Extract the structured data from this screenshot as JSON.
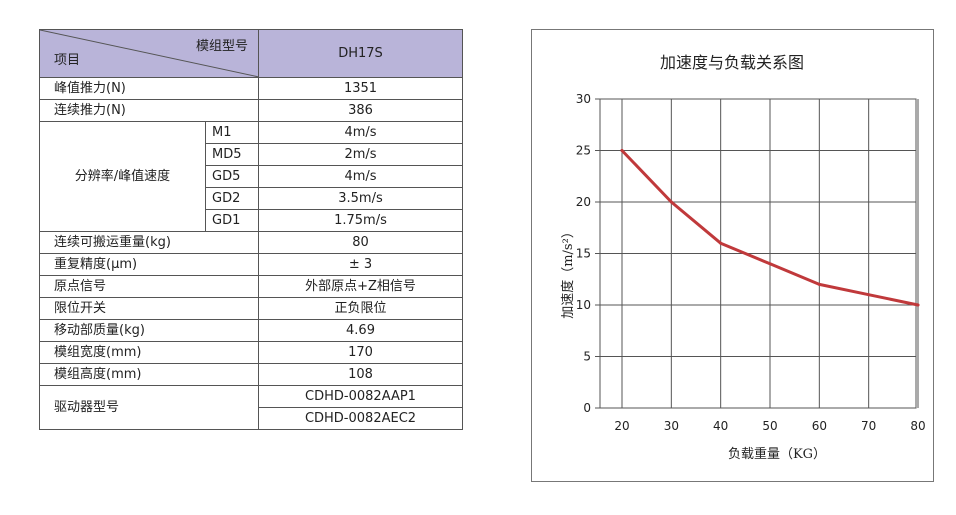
{
  "table": {
    "header": {
      "corner_top": "模组型号",
      "corner_bottom": "项目",
      "model": "DH17S"
    },
    "rows": {
      "peak_force": {
        "label": "峰值推力(N)",
        "value": "1351"
      },
      "cont_force": {
        "label": "连续推力(N)",
        "value": "386"
      },
      "resolution": {
        "label": "分辨率/峰值速度",
        "items": [
          {
            "sub": "M1",
            "value": "4m/s"
          },
          {
            "sub": "MD5",
            "value": "2m/s"
          },
          {
            "sub": "GD5",
            "value": "4m/s"
          },
          {
            "sub": "GD2",
            "value": "3.5m/s"
          },
          {
            "sub": "GD1",
            "value": "1.75m/s"
          }
        ]
      },
      "payload": {
        "label": "连续可搬运重量(kg)",
        "value": "80"
      },
      "repeat": {
        "label": "重复精度(μm)",
        "value": "± 3"
      },
      "origin": {
        "label": "原点信号",
        "value": "外部原点+Z相信号"
      },
      "limit": {
        "label": "限位开关",
        "value": "正负限位"
      },
      "moving_mass": {
        "label": "移动部质量(kg)",
        "value": "4.69"
      },
      "width": {
        "label": "模组宽度(mm)",
        "value": "170"
      },
      "height": {
        "label": "模组高度(mm)",
        "value": "108"
      },
      "driver": {
        "label": "驱动器型号",
        "values": [
          "CDHD-0082AAP1",
          "CDHD-0082AEC2"
        ]
      }
    }
  },
  "chart_data": {
    "type": "line",
    "title": "加速度与负载关系图",
    "xlabel": "负载重量（KG）",
    "ylabel": "加速度（m/s²）",
    "x": [
      20,
      30,
      40,
      50,
      60,
      70,
      80
    ],
    "series": [
      {
        "values": [
          25,
          20,
          16,
          14,
          12,
          11,
          10
        ],
        "color": "#c0393b"
      }
    ],
    "xlim": [
      20,
      80
    ],
    "ylim": [
      0,
      30
    ],
    "xticks": [
      20,
      30,
      40,
      50,
      60,
      70,
      80
    ],
    "yticks": [
      0,
      5,
      10,
      15,
      20,
      25,
      30
    ],
    "grid": true,
    "legend": "none"
  }
}
